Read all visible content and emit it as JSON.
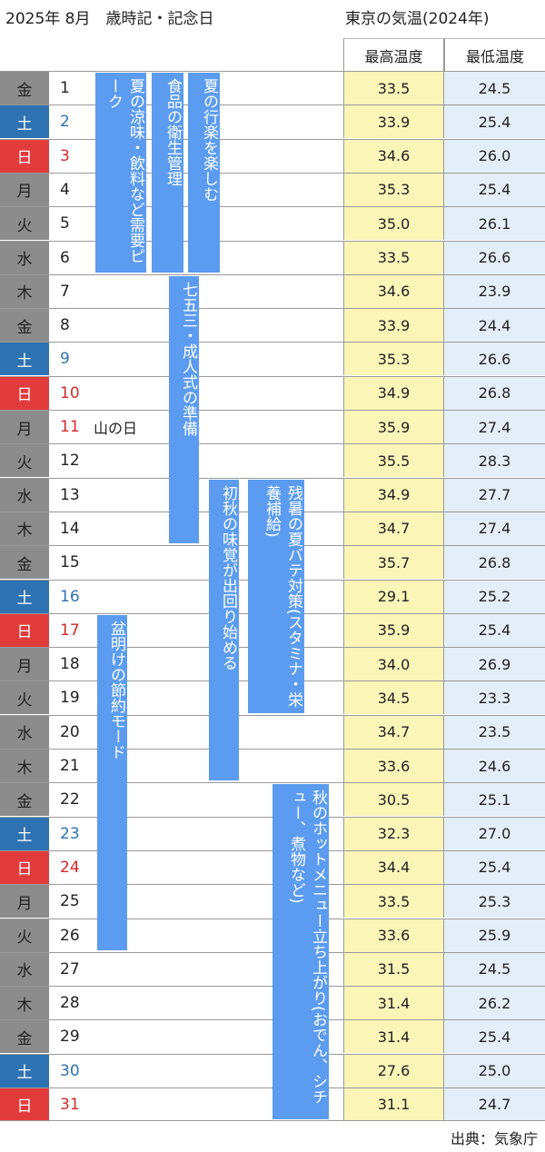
{
  "header": {
    "title": "2025年 8月　歳時記・記念日",
    "temp_title": "東京の気温(2024年)"
  },
  "columns": {
    "max": "最高温度",
    "min": "最低温度"
  },
  "days": [
    {
      "wd": "金",
      "d": "1",
      "type": "weekday",
      "hol": "",
      "max": "33.5",
      "min": "24.5"
    },
    {
      "wd": "土",
      "d": "2",
      "type": "sat",
      "hol": "",
      "max": "33.9",
      "min": "25.4"
    },
    {
      "wd": "日",
      "d": "3",
      "type": "sun",
      "hol": "",
      "max": "34.6",
      "min": "26.0"
    },
    {
      "wd": "月",
      "d": "4",
      "type": "weekday",
      "hol": "",
      "max": "35.3",
      "min": "25.4"
    },
    {
      "wd": "火",
      "d": "5",
      "type": "weekday",
      "hol": "",
      "max": "35.0",
      "min": "26.1"
    },
    {
      "wd": "水",
      "d": "6",
      "type": "weekday",
      "hol": "",
      "max": "33.5",
      "min": "26.6"
    },
    {
      "wd": "木",
      "d": "7",
      "type": "weekday",
      "hol": "",
      "max": "34.6",
      "min": "23.9"
    },
    {
      "wd": "金",
      "d": "8",
      "type": "weekday",
      "hol": "",
      "max": "33.9",
      "min": "24.4"
    },
    {
      "wd": "土",
      "d": "9",
      "type": "sat",
      "hol": "",
      "max": "35.3",
      "min": "26.6"
    },
    {
      "wd": "日",
      "d": "10",
      "type": "sun",
      "hol": "",
      "max": "34.9",
      "min": "26.8"
    },
    {
      "wd": "月",
      "d": "11",
      "type": "sun",
      "hol": "山の日",
      "max": "35.9",
      "min": "27.4"
    },
    {
      "wd": "火",
      "d": "12",
      "type": "weekday",
      "hol": "",
      "max": "35.5",
      "min": "28.3"
    },
    {
      "wd": "水",
      "d": "13",
      "type": "weekday",
      "hol": "",
      "max": "34.9",
      "min": "27.7"
    },
    {
      "wd": "木",
      "d": "14",
      "type": "weekday",
      "hol": "",
      "max": "34.7",
      "min": "27.4"
    },
    {
      "wd": "金",
      "d": "15",
      "type": "weekday",
      "hol": "",
      "max": "35.7",
      "min": "26.8"
    },
    {
      "wd": "土",
      "d": "16",
      "type": "sat",
      "hol": "",
      "max": "29.1",
      "min": "25.2"
    },
    {
      "wd": "日",
      "d": "17",
      "type": "sun",
      "hol": "",
      "max": "35.9",
      "min": "25.4"
    },
    {
      "wd": "月",
      "d": "18",
      "type": "weekday",
      "hol": "",
      "max": "34.0",
      "min": "26.9"
    },
    {
      "wd": "火",
      "d": "19",
      "type": "weekday",
      "hol": "",
      "max": "34.5",
      "min": "23.3"
    },
    {
      "wd": "水",
      "d": "20",
      "type": "weekday",
      "hol": "",
      "max": "34.7",
      "min": "23.5"
    },
    {
      "wd": "木",
      "d": "21",
      "type": "weekday",
      "hol": "",
      "max": "33.6",
      "min": "24.6"
    },
    {
      "wd": "金",
      "d": "22",
      "type": "weekday",
      "hol": "",
      "max": "30.5",
      "min": "25.1"
    },
    {
      "wd": "土",
      "d": "23",
      "type": "sat",
      "hol": "",
      "max": "32.3",
      "min": "27.0"
    },
    {
      "wd": "日",
      "d": "24",
      "type": "sun",
      "hol": "",
      "max": "34.4",
      "min": "25.4"
    },
    {
      "wd": "月",
      "d": "25",
      "type": "weekday",
      "hol": "",
      "max": "33.5",
      "min": "25.3"
    },
    {
      "wd": "火",
      "d": "26",
      "type": "weekday",
      "hol": "",
      "max": "33.6",
      "min": "25.9"
    },
    {
      "wd": "水",
      "d": "27",
      "type": "weekday",
      "hol": "",
      "max": "31.5",
      "min": "24.5"
    },
    {
      "wd": "木",
      "d": "28",
      "type": "weekday",
      "hol": "",
      "max": "31.4",
      "min": "26.2"
    },
    {
      "wd": "金",
      "d": "29",
      "type": "weekday",
      "hol": "",
      "max": "31.4",
      "min": "25.4"
    },
    {
      "wd": "土",
      "d": "30",
      "type": "sat",
      "hol": "",
      "max": "27.6",
      "min": "25.0"
    },
    {
      "wd": "日",
      "d": "31",
      "type": "sun",
      "hol": "",
      "max": "31.1",
      "min": "24.7"
    }
  ],
  "events": [
    {
      "text": "夏の涼味・飲料など需要ピーク",
      "start": 1,
      "end": 6
    },
    {
      "text": "食品の衛生管理",
      "start": 1,
      "end": 6
    },
    {
      "text": "夏の行楽を楽しむ",
      "start": 1,
      "end": 6
    },
    {
      "text": "七五三・成人式の準備",
      "start": 7,
      "end": 14
    },
    {
      "text": "初秋の味覚が出回り始める",
      "start": 13,
      "end": 21
    },
    {
      "text": "残暑の夏バテ対策(スタミナ・栄養補給)",
      "start": 13,
      "end": 19
    },
    {
      "text": "盆明けの節約モード",
      "start": 17,
      "end": 26
    },
    {
      "text": "秋のホットメニュー立ち上がり(おでん、シチュー、煮物など)",
      "start": 22,
      "end": 31
    }
  ],
  "source": "出典：気象庁"
}
